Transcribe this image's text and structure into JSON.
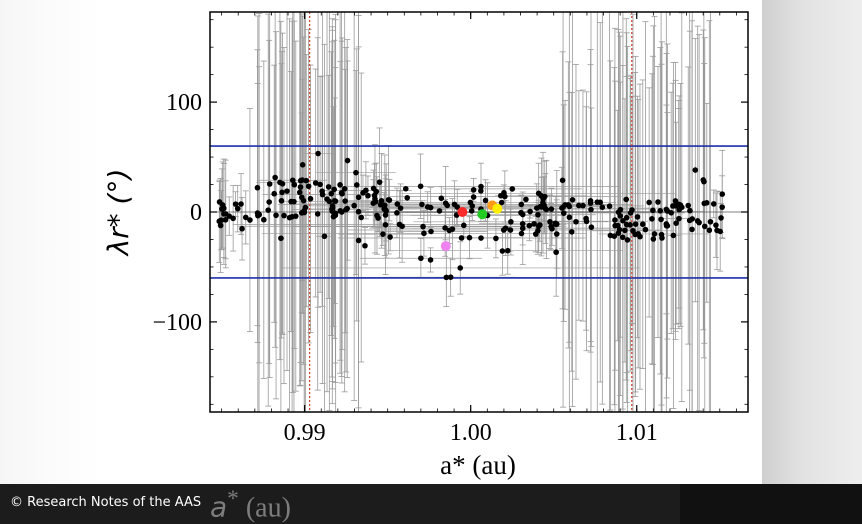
{
  "chart_data": {
    "type": "scatter",
    "title": "",
    "xlabel": "a* (au)",
    "ylabel": "λr* (°)",
    "xlim": [
      0.9843,
      1.0167
    ],
    "ylim": [
      -182,
      182
    ],
    "xticks": [
      0.99,
      1.0,
      1.01
    ],
    "xtick_labels": [
      "0.99",
      "1.00",
      "1.01"
    ],
    "yticks": [
      -100,
      0,
      100
    ],
    "ytick_labels": [
      "−100",
      "0",
      "100"
    ],
    "horizontal_lines": [
      {
        "y": 60,
        "color": "#1f2fa8"
      },
      {
        "y": -60,
        "color": "#1f2fa8"
      }
    ],
    "vertical_lines": [
      {
        "x": 0.9903,
        "color": "#d2402a",
        "style": "dotted"
      },
      {
        "x": 1.0097,
        "color": "#d2402a",
        "style": "dotted"
      }
    ],
    "highlighted_points": [
      {
        "x": 0.9995,
        "y": 0,
        "color": "#ff2a2a"
      },
      {
        "x": 1.0007,
        "y": -2,
        "color": "#22cc22"
      },
      {
        "x": 1.0013,
        "y": 6,
        "color": "#ff9a1a"
      },
      {
        "x": 1.0016,
        "y": 3,
        "color": "#ffee00"
      },
      {
        "x": 0.9985,
        "y": -31,
        "color": "#ee82ee"
      }
    ],
    "point_color": "#000000",
    "errorbar_color": "#9a9a9a",
    "grid": false
  },
  "caption": {
    "credit": "© Research Notes of the AAS",
    "ghost_label": "(au)",
    "ghost_symbol": "a",
    "ghost_sup": "*"
  }
}
